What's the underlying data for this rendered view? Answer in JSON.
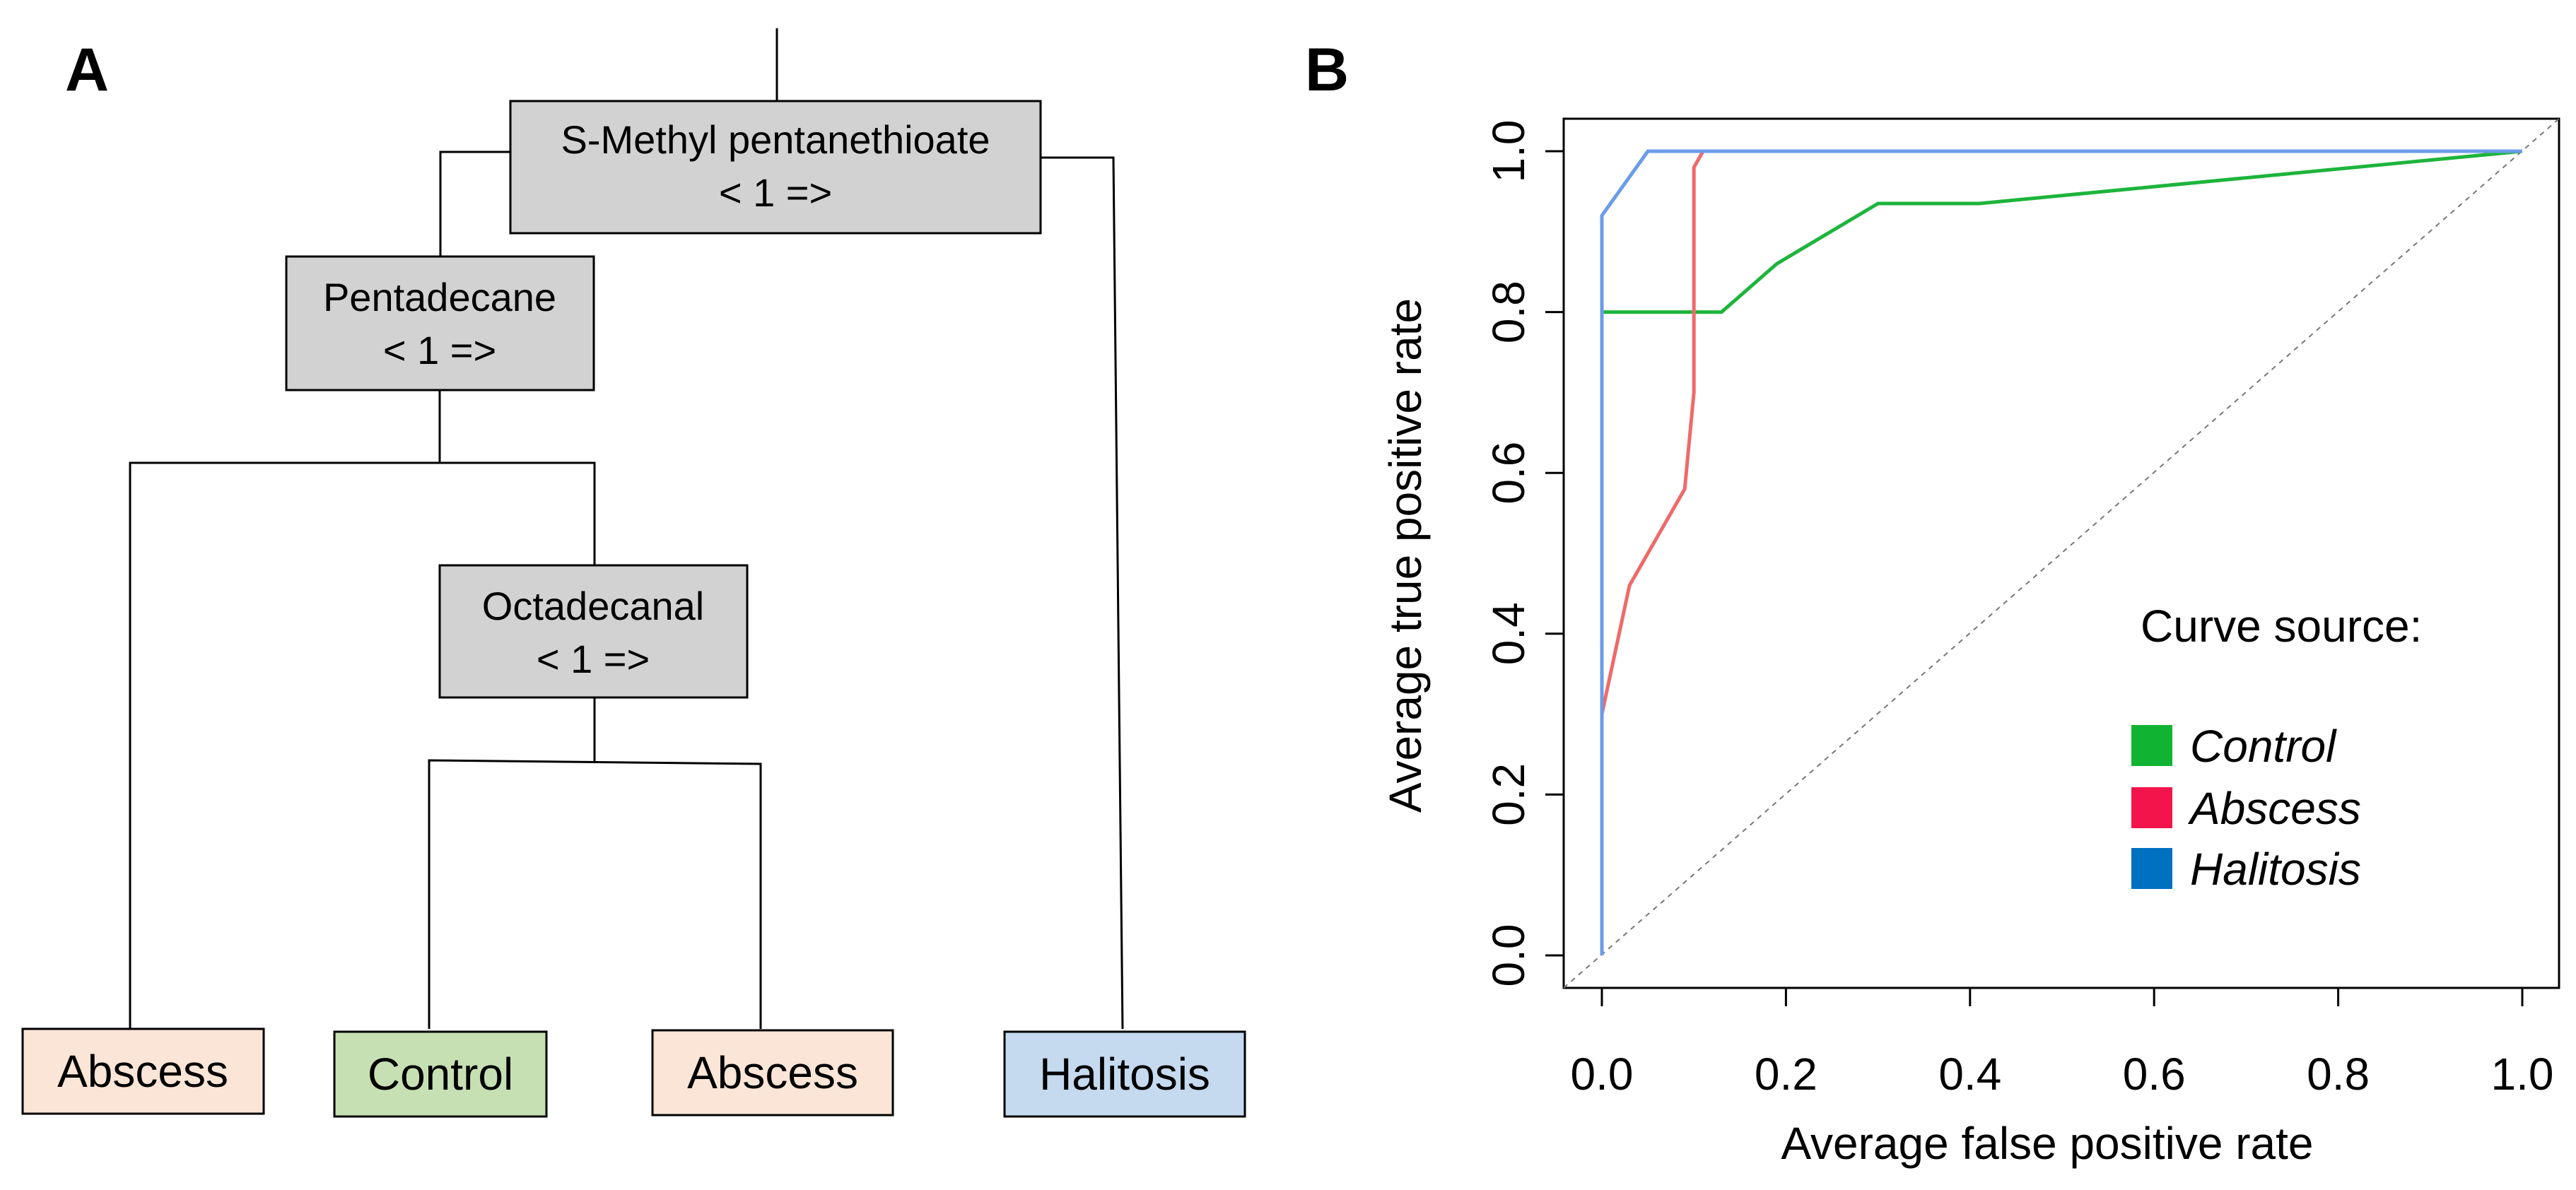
{
  "panels": {
    "a_label": "A",
    "b_label": "B"
  },
  "tree": {
    "nodes": {
      "root": {
        "name": "S-Methyl pentanethioate",
        "rule": "< 1 =>"
      },
      "n2": {
        "name": "Pentadecane",
        "rule": "< 1 =>"
      },
      "n3": {
        "name": "Octadecanal",
        "rule": "< 1 =>"
      }
    },
    "leaves": {
      "abscess_1": "Abscess",
      "control": "Control",
      "abscess_2": "Abscess",
      "halitosis": "Halitosis"
    },
    "colors": {
      "node_fill": "#d2d2d2",
      "abscess": "#fbe5d6",
      "control": "#c6e0b4",
      "halitosis": "#c5d9ef"
    }
  },
  "chart_data": {
    "type": "line",
    "title": "",
    "xlabel": "Average false positive rate",
    "ylabel": "Average true positive rate",
    "xlim": [
      0,
      1
    ],
    "ylim": [
      0,
      1
    ],
    "xticks": [
      "0.0",
      "0.2",
      "0.4",
      "0.6",
      "0.8",
      "1.0"
    ],
    "yticks": [
      "0.0",
      "0.2",
      "0.4",
      "0.6",
      "0.8",
      "1.0"
    ],
    "grid": false,
    "diagonal_reference": true,
    "legend_title": "Curve source:",
    "legend_position": "right",
    "series": [
      {
        "name": "Control",
        "color": "#1db43c",
        "x": [
          0,
          0,
          0.13,
          0.19,
          0.3,
          0.41,
          1.0
        ],
        "y": [
          0.78,
          0.8,
          0.8,
          0.86,
          0.935,
          0.935,
          1.0
        ]
      },
      {
        "name": "Abscess",
        "color": "#ef6a6a",
        "x": [
          0,
          0.03,
          0.09,
          0.1,
          0.1,
          0.11,
          1.0
        ],
        "y": [
          0.3,
          0.46,
          0.58,
          0.7,
          0.98,
          1.0,
          1.0
        ]
      },
      {
        "name": "Halitosis",
        "color": "#6b9ce8",
        "x": [
          0,
          0,
          0.05,
          1.0
        ],
        "y": [
          0,
          0.92,
          1.0,
          1.0
        ]
      }
    ],
    "legend_colors": {
      "Control": "#10b432",
      "Abscess": "#f2144b",
      "Halitosis": "#0070c0"
    }
  }
}
